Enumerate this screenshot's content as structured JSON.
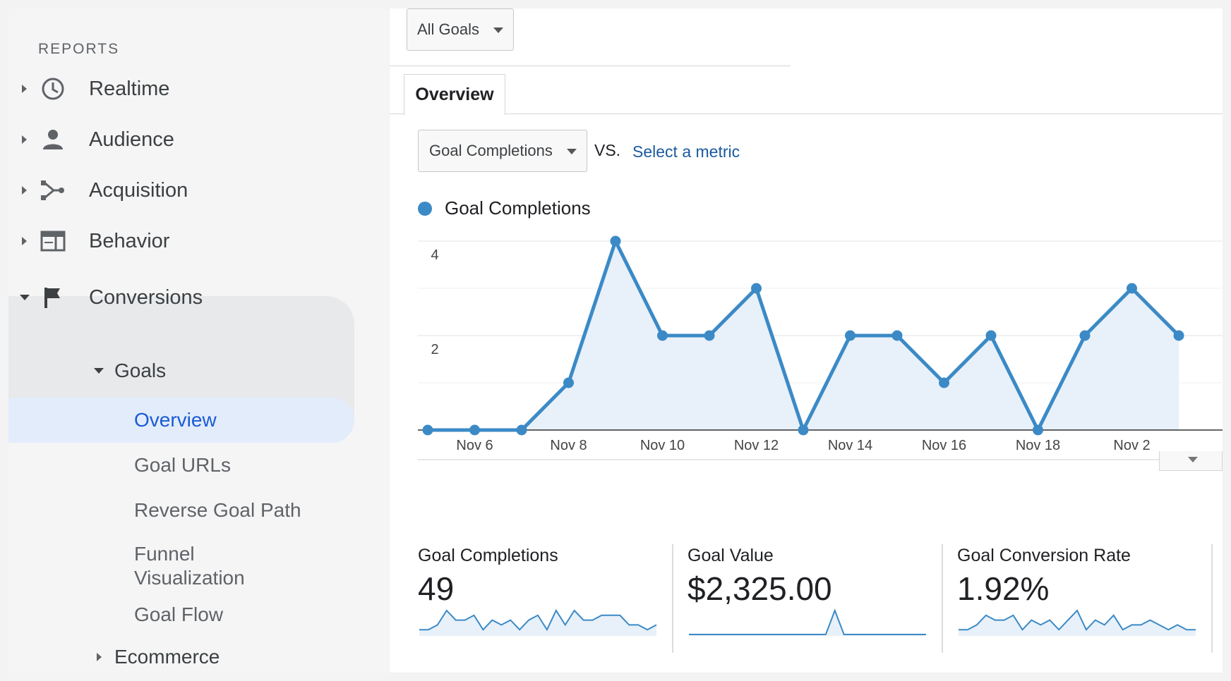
{
  "sidebar": {
    "heading": "REPORTS",
    "items": [
      {
        "label": "Realtime",
        "icon": "clock-icon"
      },
      {
        "label": "Audience",
        "icon": "person-icon"
      },
      {
        "label": "Acquisition",
        "icon": "acquisition-icon"
      },
      {
        "label": "Behavior",
        "icon": "behavior-icon"
      },
      {
        "label": "Conversions",
        "icon": "flag-icon"
      }
    ],
    "goals_label": "Goals",
    "goal_items": [
      "Overview",
      "Goal URLs",
      "Reverse Goal Path",
      "Funnel",
      "Visualization",
      "Goal Flow"
    ],
    "ecommerce_label": "Ecommerce"
  },
  "toolbar": {
    "goal_filter": "All Goals",
    "tab": "Overview",
    "metric": "Goal Completions",
    "vs": "VS.",
    "select_metric": "Select a metric"
  },
  "colors": {
    "accent_line": "#3b8ac6",
    "area_fill": "#e8f0f9",
    "link": "#1a5a9e",
    "active_nav": "#1a5bd5",
    "active_nav_bg": "#e3ecfa"
  },
  "chart_data": {
    "type": "line",
    "series": [
      {
        "name": "Goal Completions",
        "values": [
          0,
          0,
          0,
          1,
          4,
          2,
          2,
          3,
          0,
          2,
          2,
          1,
          2,
          0,
          2,
          3,
          2
        ]
      }
    ],
    "x_tick_labels": [
      "Nov 6",
      "Nov 8",
      "Nov 10",
      "Nov 12",
      "Nov 14",
      "Nov 16",
      "Nov 18",
      "Nov 2"
    ],
    "y_tick_labels": [
      "4",
      "2"
    ],
    "ylim": [
      0,
      4
    ],
    "grid": true
  },
  "scorecards": [
    {
      "label": "Goal Completions",
      "value": "49",
      "spark": [
        1,
        1,
        2,
        5,
        3,
        3,
        4,
        1,
        3,
        2,
        3,
        1,
        3,
        4,
        1,
        5,
        2,
        5,
        3,
        3,
        4,
        4,
        4,
        2,
        2,
        1,
        2
      ]
    },
    {
      "label": "Goal Value",
      "value": "$2,325.00",
      "spark": [
        0,
        0,
        0,
        0,
        0,
        0,
        0,
        0,
        0,
        0,
        0,
        0,
        0,
        0,
        0,
        0,
        5,
        0,
        0,
        0,
        0,
        0,
        0,
        0,
        0,
        0,
        0
      ]
    },
    {
      "label": "Goal Conversion Rate",
      "value": "1.92%",
      "spark": [
        1,
        1,
        2,
        4,
        3,
        3,
        4,
        1,
        3,
        2,
        3,
        1,
        3,
        5,
        1,
        3,
        2,
        4,
        1,
        2,
        2,
        3,
        2,
        1,
        2,
        1,
        1
      ]
    }
  ]
}
